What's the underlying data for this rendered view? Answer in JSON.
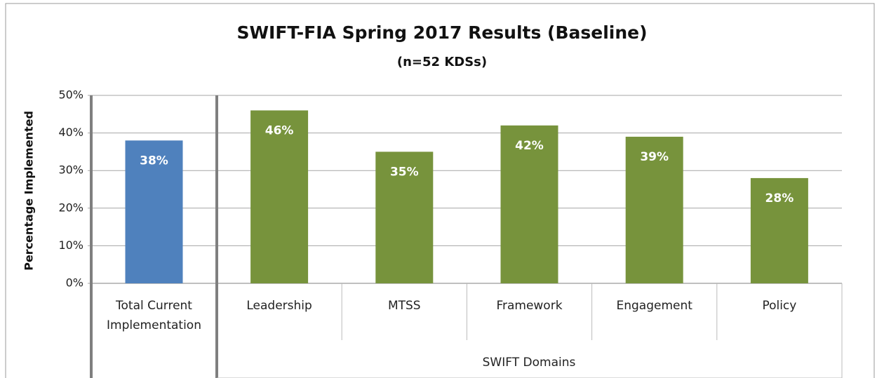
{
  "chart_data": {
    "type": "bar",
    "title": "SWIFT-FIA Spring 2017 Results (Baseline)",
    "subtitle": "(n=52 KDSs)",
    "y_label": "Percentage Implemented",
    "group_label": "SWIFT Domains",
    "categories": [
      "Total Current Implementation",
      "Leadership",
      "MTSS",
      "Framework",
      "Engagement",
      "Policy"
    ],
    "values": [
      38,
      46,
      35,
      42,
      39,
      28
    ],
    "value_labels": [
      "38%",
      "46%",
      "35%",
      "42%",
      "39%",
      "28%"
    ],
    "colors": [
      "#4f81bd",
      "#77933c",
      "#77933c",
      "#77933c",
      "#77933c",
      "#77933c"
    ],
    "ylim": [
      0,
      50
    ],
    "yticks": [
      {
        "value": 0,
        "label": "0%"
      },
      {
        "value": 10,
        "label": "10%"
      },
      {
        "value": 20,
        "label": "20%"
      },
      {
        "value": 30,
        "label": "30%"
      },
      {
        "value": 40,
        "label": "40%"
      },
      {
        "value": 50,
        "label": "50%"
      }
    ],
    "grid": true
  }
}
